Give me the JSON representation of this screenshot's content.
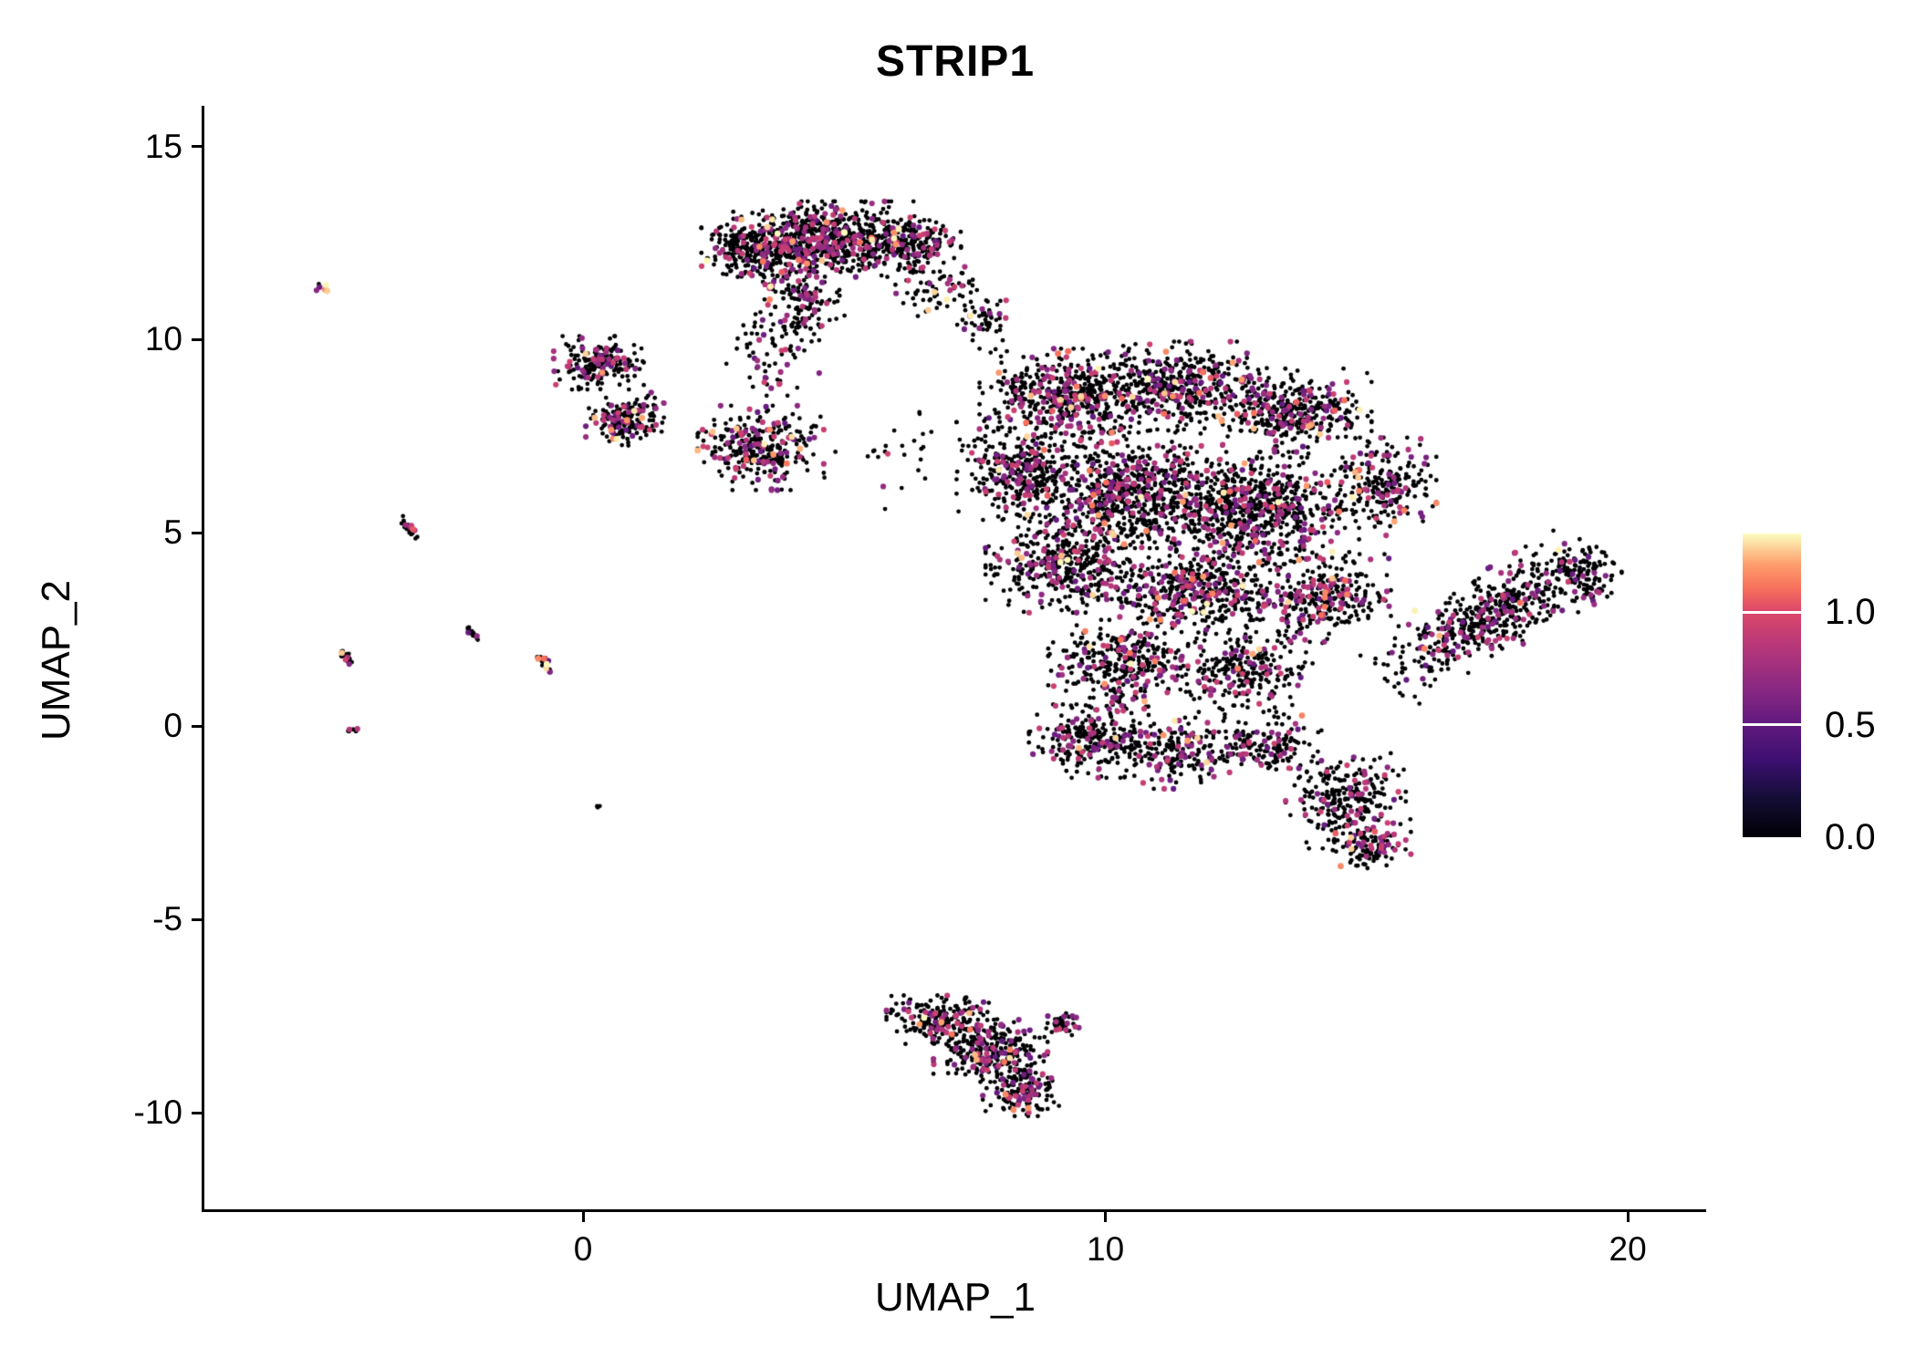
{
  "chart_data": {
    "type": "scatter",
    "title": "STRIP1",
    "xlabel": "UMAP_1",
    "ylabel": "UMAP_2",
    "xlim": [
      -7.25,
      21.5
    ],
    "ylim": [
      -12.5,
      16.05
    ],
    "x_ticks": [
      "0",
      "10",
      "20"
    ],
    "x_tick_values": [
      0,
      10,
      20
    ],
    "y_ticks": [
      "15",
      "10",
      "5",
      "0",
      "-5",
      "-10"
    ],
    "y_tick_values": [
      15,
      10,
      5,
      0,
      -5,
      -10
    ],
    "grid": false,
    "legend_position": "right",
    "seed": 20240613,
    "colorbar": {
      "ticks": [
        1.0,
        0.5,
        0.0
      ],
      "tick_labels": [
        "1.0",
        "0.5",
        "0.0"
      ],
      "vmin": 0.0,
      "vmax": 1.35,
      "colormap": "magma",
      "stops": [
        {
          "f": 0.0,
          "color": "#000004"
        },
        {
          "f": 0.13,
          "color": "#140E36"
        },
        {
          "f": 0.25,
          "color": "#3B0F70"
        },
        {
          "f": 0.38,
          "color": "#641A80"
        },
        {
          "f": 0.5,
          "color": "#8C2981"
        },
        {
          "f": 0.63,
          "color": "#B73779"
        },
        {
          "f": 0.75,
          "color": "#DE4968"
        },
        {
          "f": 0.82,
          "color": "#F7705C"
        },
        {
          "f": 0.9,
          "color": "#FE9F6D"
        },
        {
          "f": 1.0,
          "color": "#FCFDBF"
        }
      ]
    },
    "value_distribution": {
      "p_mid": 0.18,
      "p_high": 0.02,
      "mid_range": [
        0.5,
        0.95
      ],
      "high_range": [
        1.05,
        1.35
      ]
    },
    "clusters": [
      {
        "cx": 4.6,
        "cy": 12.6,
        "rx": 1.5,
        "ry": 0.85,
        "n": 650
      },
      {
        "cx": 3.3,
        "cy": 12.3,
        "rx": 0.9,
        "ry": 0.7,
        "n": 260
      },
      {
        "cx": 6.2,
        "cy": 12.5,
        "rx": 0.9,
        "ry": 0.65,
        "n": 220
      },
      {
        "cx": 4.2,
        "cy": 11.0,
        "rx": 0.7,
        "ry": 0.9,
        "n": 150
      },
      {
        "cx": 3.6,
        "cy": 9.7,
        "rx": 0.8,
        "ry": 1.0,
        "n": 70
      },
      {
        "cx": 6.9,
        "cy": 11.3,
        "rx": 0.8,
        "ry": 0.6,
        "n": 70
      },
      {
        "cx": 0.3,
        "cy": 9.4,
        "rx": 0.75,
        "ry": 0.6,
        "n": 190
      },
      {
        "cx": 0.8,
        "cy": 7.95,
        "rx": 0.65,
        "ry": 0.6,
        "n": 170
      },
      {
        "cx": 3.4,
        "cy": 7.2,
        "rx": 1.05,
        "ry": 0.95,
        "n": 310
      },
      {
        "cx": 6.0,
        "cy": 7.0,
        "rx": 1.2,
        "ry": 1.2,
        "n": 25
      },
      {
        "cx": 9.2,
        "cy": 8.5,
        "rx": 1.4,
        "ry": 1.1,
        "n": 480
      },
      {
        "cx": 11.4,
        "cy": 8.8,
        "rx": 1.5,
        "ry": 1.0,
        "n": 480
      },
      {
        "cx": 13.6,
        "cy": 8.1,
        "rx": 1.3,
        "ry": 1.0,
        "n": 380
      },
      {
        "cx": 15.3,
        "cy": 6.2,
        "rx": 0.9,
        "ry": 1.1,
        "n": 220
      },
      {
        "cx": 8.3,
        "cy": 6.6,
        "rx": 1.0,
        "ry": 1.1,
        "n": 300
      },
      {
        "cx": 10.4,
        "cy": 6.1,
        "rx": 1.8,
        "ry": 1.3,
        "n": 750
      },
      {
        "cx": 12.9,
        "cy": 5.6,
        "rx": 1.7,
        "ry": 1.3,
        "n": 700
      },
      {
        "cx": 9.2,
        "cy": 4.2,
        "rx": 1.3,
        "ry": 1.1,
        "n": 420
      },
      {
        "cx": 11.7,
        "cy": 3.5,
        "rx": 1.6,
        "ry": 1.1,
        "n": 500
      },
      {
        "cx": 14.2,
        "cy": 3.3,
        "rx": 1.1,
        "ry": 1.0,
        "n": 300
      },
      {
        "cx": 10.4,
        "cy": 1.6,
        "rx": 1.3,
        "ry": 1.0,
        "n": 330
      },
      {
        "cx": 12.7,
        "cy": 1.4,
        "rx": 1.1,
        "ry": 0.9,
        "n": 240
      },
      {
        "cx": 9.8,
        "cy": -0.3,
        "rx": 1.1,
        "ry": 0.9,
        "n": 280
      },
      {
        "cx": 11.4,
        "cy": -0.7,
        "rx": 0.9,
        "ry": 0.8,
        "n": 180
      },
      {
        "cx": 13.1,
        "cy": -0.5,
        "rx": 0.9,
        "ry": 0.7,
        "n": 150
      },
      {
        "cx": 14.6,
        "cy": -1.9,
        "rx": 1.0,
        "ry": 1.1,
        "n": 260
      },
      {
        "cx": 15.1,
        "cy": -3.1,
        "rx": 0.65,
        "ry": 0.6,
        "n": 110
      },
      {
        "cx": 7.7,
        "cy": 10.5,
        "rx": 0.5,
        "ry": 0.45,
        "n": 45
      },
      {
        "cx": 17.4,
        "cy": 2.9,
        "rx": 2.3,
        "ry": 0.85,
        "n": 520,
        "rot": 38
      },
      {
        "cx": 19.1,
        "cy": 3.9,
        "rx": 0.7,
        "ry": 0.8,
        "n": 110
      },
      {
        "cx": 6.9,
        "cy": -7.6,
        "rx": 0.95,
        "ry": 0.55,
        "n": 210
      },
      {
        "cx": 7.8,
        "cy": -8.4,
        "rx": 0.95,
        "ry": 0.7,
        "n": 270
      },
      {
        "cx": 8.4,
        "cy": -9.4,
        "rx": 0.65,
        "ry": 0.6,
        "n": 160
      },
      {
        "cx": 9.2,
        "cy": -7.7,
        "rx": 0.3,
        "ry": 0.3,
        "n": 40
      },
      {
        "cx": -5.0,
        "cy": 11.35,
        "rx": 0.12,
        "ry": 0.1,
        "n": 7,
        "p_mid": 0.3,
        "p_high": 0.5
      },
      {
        "cx": -3.35,
        "cy": 5.15,
        "rx": 0.3,
        "ry": 0.08,
        "n": 24,
        "rot": -60
      },
      {
        "cx": -4.55,
        "cy": 1.8,
        "rx": 0.28,
        "ry": 0.08,
        "n": 24,
        "rot": -60
      },
      {
        "cx": -2.15,
        "cy": 2.45,
        "rx": 0.22,
        "ry": 0.07,
        "n": 16,
        "rot": -60
      },
      {
        "cx": -0.72,
        "cy": 1.6,
        "rx": 0.25,
        "ry": 0.08,
        "n": 20,
        "rot": -60,
        "p_high": 0.08
      },
      {
        "cx": -4.4,
        "cy": -0.1,
        "rx": 0.1,
        "ry": 0.07,
        "n": 8
      },
      {
        "cx": 0.3,
        "cy": -2.1,
        "rx": 0.06,
        "ry": 0.05,
        "n": 3
      }
    ]
  }
}
